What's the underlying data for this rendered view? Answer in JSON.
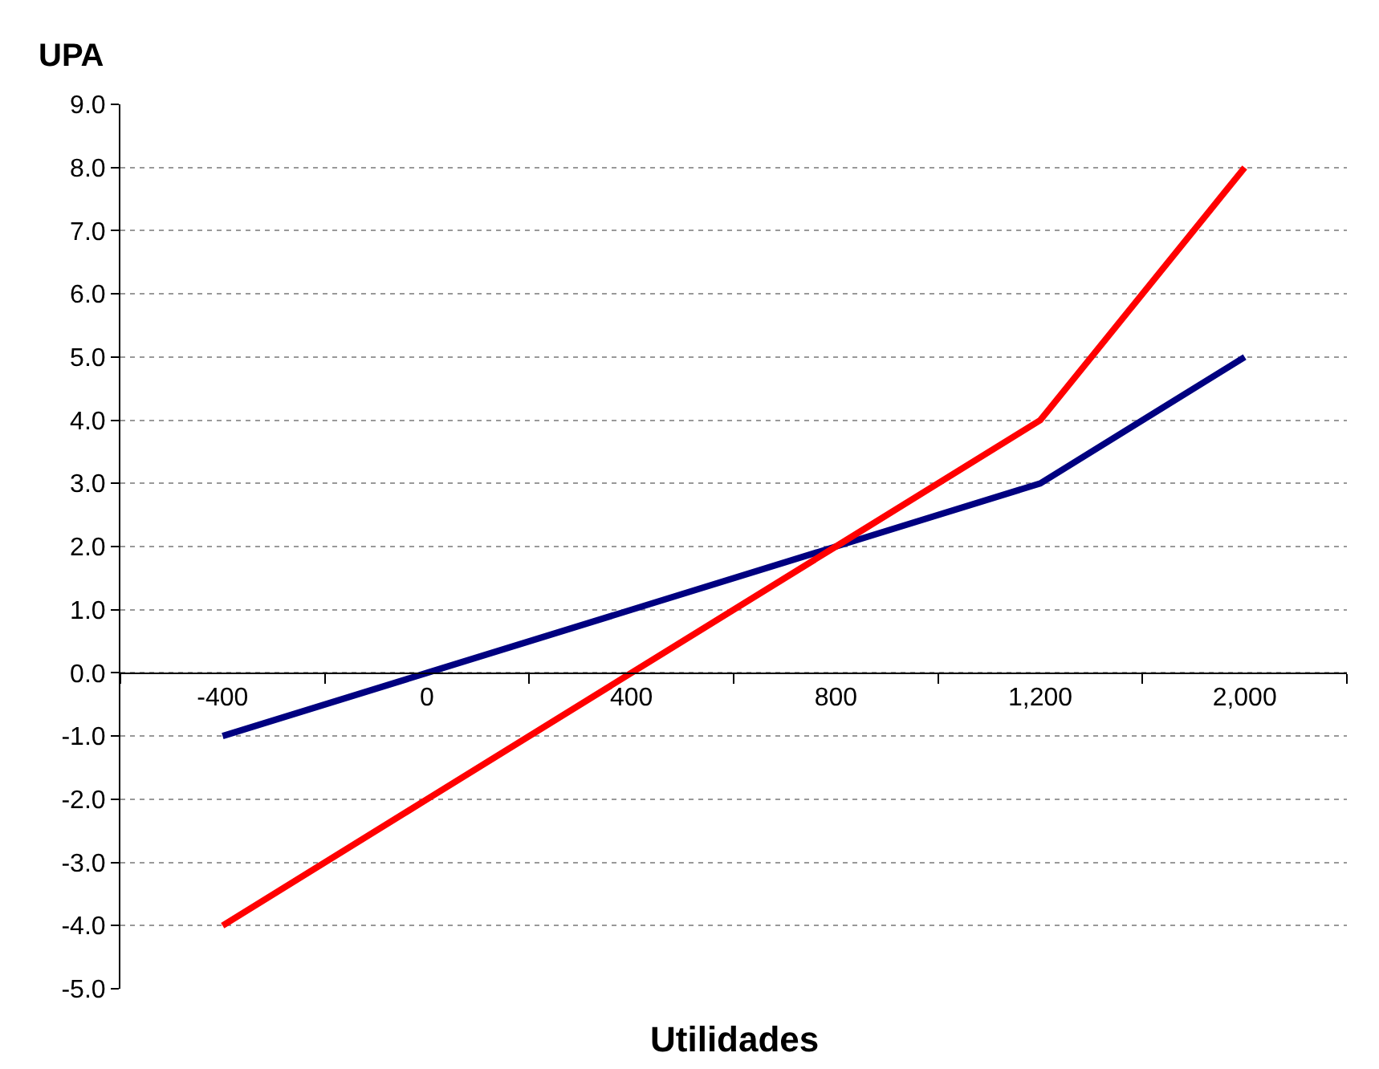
{
  "chart_data": {
    "type": "line",
    "ylabel": "UPA",
    "xlabel": "Utilidades",
    "categories": [
      "-400",
      "0",
      "400",
      "800",
      "1,200",
      "2,000"
    ],
    "series": [
      {
        "color": "#000080",
        "values": [
          -1,
          0,
          1,
          2,
          3,
          5
        ]
      },
      {
        "color": "#ff0000",
        "values": [
          -4,
          -2,
          0,
          2,
          4,
          8
        ]
      }
    ],
    "ylim": [
      -5,
      9
    ],
    "yticks": [
      {
        "value": -5,
        "label": "-5.0"
      },
      {
        "value": -4,
        "label": "-4.0"
      },
      {
        "value": -3,
        "label": "-3.0"
      },
      {
        "value": -2,
        "label": "-2.0"
      },
      {
        "value": -1,
        "label": "-1.0"
      },
      {
        "value": 0,
        "label": "0.0"
      },
      {
        "value": 1,
        "label": "1.0"
      },
      {
        "value": 2,
        "label": "2.0"
      },
      {
        "value": 3,
        "label": "3.0"
      },
      {
        "value": 4,
        "label": "4.0"
      },
      {
        "value": 5,
        "label": "5.0"
      },
      {
        "value": 6,
        "label": "6.0"
      },
      {
        "value": 7,
        "label": "7.0"
      },
      {
        "value": 8,
        "label": "8.0"
      },
      {
        "value": 9,
        "label": "9.0"
      }
    ],
    "grid": "y",
    "marker": "none",
    "line_style": "solid"
  }
}
